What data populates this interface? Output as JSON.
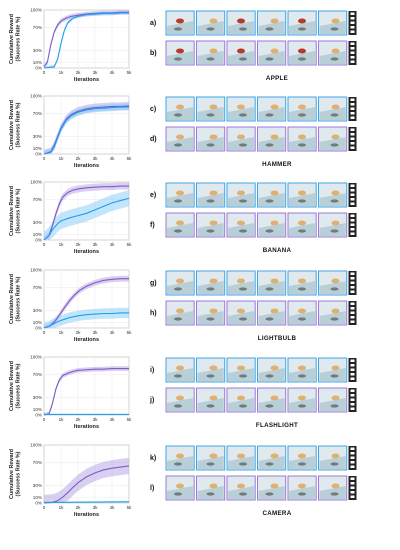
{
  "colors": {
    "purple": "#7b5cc9",
    "blue": "#1a9ff0",
    "purple_band": "#b9a8e6",
    "blue_band": "#8fd0f7",
    "frame_blue": "#3fa6e6",
    "frame_purple": "#9a7bd6"
  },
  "chart_data": [
    {
      "type": "line",
      "object": "APPLE",
      "xlabel": "Iterations",
      "ylabel": "Cumulative Reward\n(Success Rate %)",
      "xticks": [
        "0",
        "1k",
        "2k",
        "3k",
        "4k",
        "5k"
      ],
      "yticks": [
        "0%",
        "10%",
        "30%",
        "70%",
        "100%"
      ],
      "xlim": [
        0,
        5000
      ],
      "ylim": [
        0,
        100
      ],
      "series": [
        {
          "color": "purple",
          "x": [
            0,
            200,
            400,
            600,
            800,
            1000,
            1300,
            1600,
            2000,
            2500,
            3000,
            3500,
            4000,
            4500,
            5000
          ],
          "values": [
            2,
            10,
            40,
            62,
            74,
            81,
            86,
            89,
            91,
            93,
            94,
            95,
            95,
            96,
            96
          ],
          "band": 4
        },
        {
          "color": "blue",
          "x": [
            0,
            600,
            800,
            1000,
            1200,
            1400,
            1700,
            2000,
            2500,
            3000,
            3500,
            4000,
            4500,
            5000
          ],
          "values": [
            0,
            2,
            15,
            42,
            65,
            78,
            86,
            89,
            92,
            93,
            94,
            94,
            95,
            95
          ],
          "band": 3
        }
      ],
      "rows": [
        "a)",
        "b)"
      ]
    },
    {
      "type": "line",
      "object": "HAMMER",
      "xlabel": "Iterations",
      "ylabel": "Cumulative Reward\n(Success Rate %)",
      "xticks": [
        "0",
        "1k",
        "2k",
        "3k",
        "4k",
        "5k"
      ],
      "yticks": [
        "0%",
        "10%",
        "30%",
        "70%",
        "100%"
      ],
      "xlim": [
        0,
        5000
      ],
      "ylim": [
        0,
        100
      ],
      "series": [
        {
          "color": "purple",
          "x": [
            0,
            400,
            600,
            800,
            1000,
            1300,
            1600,
            2000,
            2500,
            3000,
            3500,
            4000,
            4500,
            5000
          ],
          "values": [
            0,
            4,
            15,
            30,
            45,
            60,
            68,
            74,
            78,
            80,
            81,
            82,
            82,
            83
          ],
          "band": 7
        },
        {
          "color": "blue",
          "x": [
            0,
            400,
            600,
            800,
            1000,
            1300,
            1600,
            2000,
            2500,
            3000,
            3500,
            4000,
            4500,
            5000
          ],
          "values": [
            0,
            3,
            12,
            28,
            43,
            58,
            66,
            72,
            76,
            78,
            79,
            80,
            81,
            81
          ],
          "band": 6
        }
      ],
      "rows": [
        "c)",
        "d)"
      ]
    },
    {
      "type": "line",
      "object": "BANANA",
      "xlabel": "Iterations",
      "ylabel": "Cumulative Reward\n(Success Rate %)",
      "xticks": [
        "0",
        "1k",
        "2k",
        "3k",
        "4k",
        "5k"
      ],
      "yticks": [
        "0%",
        "10%",
        "30%",
        "70%",
        "100%"
      ],
      "xlim": [
        0,
        5000
      ],
      "ylim": [
        0,
        100
      ],
      "series": [
        {
          "color": "purple",
          "x": [
            0,
            300,
            500,
            700,
            900,
            1100,
            1400,
            1700,
            2000,
            2500,
            3000,
            3500,
            4000,
            4500,
            5000
          ],
          "values": [
            0,
            8,
            25,
            45,
            62,
            74,
            82,
            86,
            88,
            90,
            91,
            92,
            92,
            93,
            93
          ],
          "band": 6
        },
        {
          "color": "blue",
          "x": [
            0,
            300,
            500,
            800,
            1000,
            1500,
            2000,
            2500,
            3000,
            3500,
            4000,
            4500,
            5000
          ],
          "values": [
            0,
            8,
            18,
            28,
            33,
            38,
            42,
            46,
            52,
            58,
            64,
            68,
            72
          ],
          "band": 14
        }
      ],
      "rows": [
        "e)",
        "f)"
      ]
    },
    {
      "type": "line",
      "object": "LIGHTBULB",
      "xlabel": "Iterations",
      "ylabel": "Cumulative Reward\n(Success Rate %)",
      "xticks": [
        "0",
        "1k",
        "2k",
        "3k",
        "4k",
        "5k"
      ],
      "yticks": [
        "0%",
        "10%",
        "30%",
        "70%",
        "100%"
      ],
      "xlim": [
        0,
        5000
      ],
      "ylim": [
        0,
        100
      ],
      "series": [
        {
          "color": "purple",
          "x": [
            0,
            300,
            600,
            900,
            1200,
            1500,
            1800,
            2100,
            2500,
            3000,
            3500,
            4000,
            4500,
            5000
          ],
          "values": [
            0,
            3,
            10,
            22,
            35,
            47,
            57,
            65,
            72,
            78,
            82,
            84,
            85,
            85
          ],
          "band": 5
        },
        {
          "color": "blue",
          "x": [
            0,
            300,
            600,
            900,
            1200,
            1500,
            2000,
            2500,
            3000,
            3500,
            4000,
            4500,
            5000
          ],
          "values": [
            0,
            3,
            8,
            12,
            15,
            18,
            21,
            23,
            24,
            25,
            25,
            26,
            26
          ],
          "band": 9
        }
      ],
      "rows": [
        "g)",
        "h)"
      ]
    },
    {
      "type": "line",
      "object": "FLASHLIGHT",
      "xlabel": "Iterations",
      "ylabel": "Cumulative Reward\n(Success Rate %)",
      "xticks": [
        "0",
        "1k",
        "2k",
        "3k",
        "4k",
        "5k"
      ],
      "yticks": [
        "0%",
        "10%",
        "30%",
        "70%",
        "100%"
      ],
      "xlim": [
        0,
        5000
      ],
      "ylim": [
        0,
        100
      ],
      "series": [
        {
          "color": "purple",
          "x": [
            0,
            300,
            500,
            700,
            900,
            1100,
            1400,
            1700,
            2000,
            2500,
            3000,
            3500,
            4000,
            4500,
            5000
          ],
          "values": [
            0,
            2,
            20,
            45,
            60,
            68,
            72,
            75,
            77,
            78,
            79,
            79,
            80,
            80,
            80
          ],
          "band": 4
        },
        {
          "color": "blue",
          "x": [
            0,
            5000
          ],
          "values": [
            1,
            1
          ],
          "band": 0.5
        }
      ],
      "rows": [
        "i)",
        "j)"
      ]
    },
    {
      "type": "line",
      "object": "CAMERA",
      "xlabel": "Iterations",
      "ylabel": "Cumulative Reward\n(Success Rate %)",
      "xticks": [
        "0",
        "1k",
        "2k",
        "3k",
        "4k",
        "5k"
      ],
      "yticks": [
        "0%",
        "10%",
        "30%",
        "70%",
        "100%"
      ],
      "xlim": [
        0,
        5000
      ],
      "ylim": [
        0,
        100
      ],
      "series": [
        {
          "color": "purple",
          "x": [
            0,
            500,
            800,
            1100,
            1400,
            1700,
            2000,
            2500,
            3000,
            3500,
            4000,
            4500,
            5000
          ],
          "values": [
            0,
            1,
            4,
            10,
            18,
            27,
            35,
            45,
            52,
            57,
            60,
            62,
            64
          ],
          "band": 14
        },
        {
          "color": "blue",
          "x": [
            0,
            5000
          ],
          "values": [
            1,
            2
          ],
          "band": 1
        }
      ],
      "rows": [
        "k)",
        "l)"
      ]
    }
  ]
}
